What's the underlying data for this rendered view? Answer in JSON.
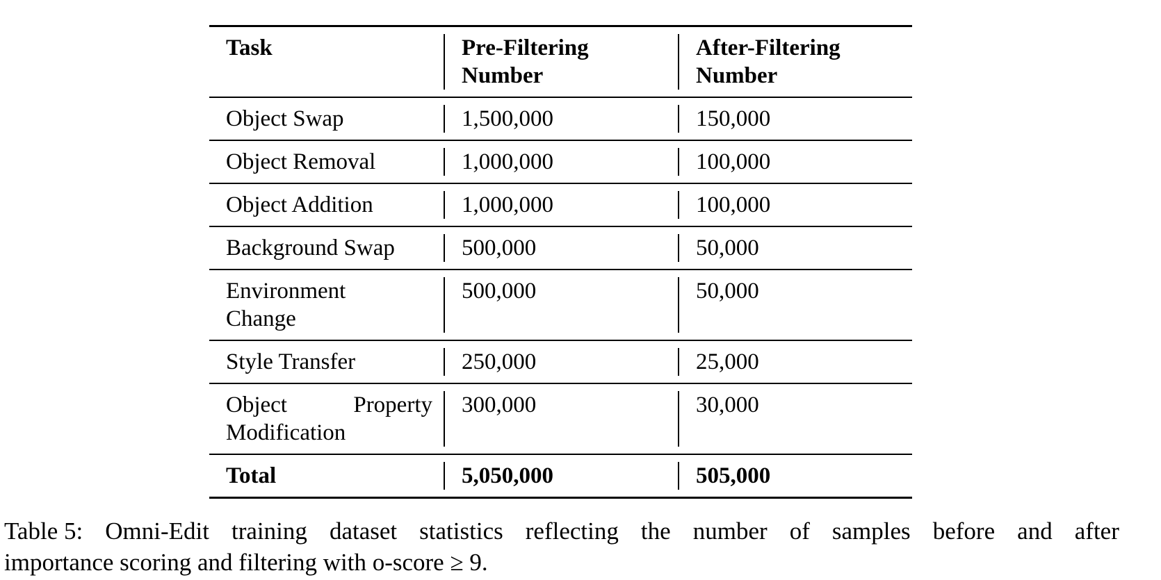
{
  "table": {
    "headers": [
      "Task",
      "Pre-Filtering Number",
      "After-Filtering Number"
    ],
    "header_lines": [
      [
        "Task"
      ],
      [
        "Pre-Filtering",
        "Number"
      ],
      [
        "After-Filtering",
        "Number"
      ]
    ],
    "rows": [
      {
        "task": "Object Swap",
        "pre": "1,500,000",
        "after": "150,000"
      },
      {
        "task": "Object Removal",
        "pre": "1,000,000",
        "after": "100,000"
      },
      {
        "task": "Object Addition",
        "pre": "1,000,000",
        "after": "100,000"
      },
      {
        "task": "Background Swap",
        "pre": "500,000",
        "after": "50,000"
      },
      {
        "task": "Environment Change",
        "task_lines": [
          "Environment",
          "Change"
        ],
        "pre": "500,000",
        "after": "50,000"
      },
      {
        "task": "Style Transfer",
        "pre": "250,000",
        "after": "25,000"
      },
      {
        "task": "Object Property Modification",
        "task_lines": [
          "Object",
          "Property",
          "Modification"
        ],
        "pre": "300,000",
        "after": "30,000"
      }
    ],
    "total": {
      "task": "Total",
      "pre": "5,050,000",
      "after": "505,000"
    }
  },
  "caption": {
    "label": "Table 5:",
    "text": "Omni-Edit training dataset statistics reflecting the number of samples before and after importance scoring and filtering with o-score ≥ 9.",
    "line1": "Table 5: Omni-Edit training dataset statistics reflecting the number of samples before and after",
    "line2": "importance scoring and filtering with o-score ≥ 9."
  }
}
